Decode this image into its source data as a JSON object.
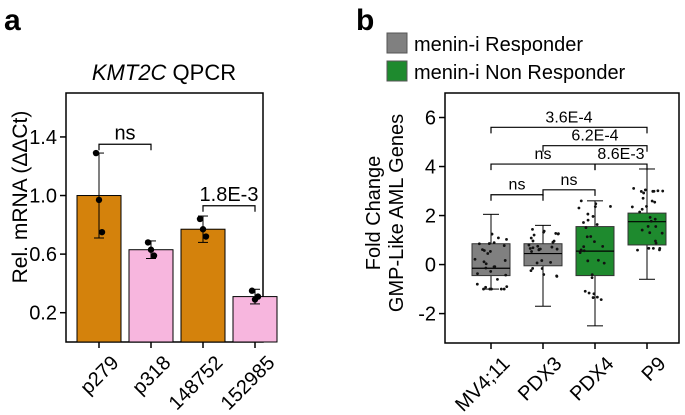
{
  "panel_labels": {
    "a": "a",
    "b": "b"
  },
  "chart_data": [
    {
      "type": "bar",
      "panel": "a",
      "title_gene": "KMT2C",
      "title_rest": " QPCR",
      "ylabel": "Rel. mRNA (ΔΔCt)",
      "ylim": [
        0.0,
        1.7
      ],
      "yticks": [
        0.2,
        0.6,
        1.0,
        1.4
      ],
      "ytick_labels": [
        "0.2",
        "0.6",
        "1.0",
        "1.4"
      ],
      "categories": [
        "p279",
        "p318",
        "148752",
        "152985"
      ],
      "values": [
        1.0,
        0.63,
        0.77,
        0.31
      ],
      "errors": [
        0.29,
        0.06,
        0.09,
        0.05
      ],
      "bar_colors": [
        "#d4820c",
        "#f7b6de",
        "#d4820c",
        "#f7b6de"
      ],
      "points": [
        [
          1.29,
          0.97,
          0.75
        ],
        [
          0.68,
          0.63,
          0.59
        ],
        [
          0.84,
          0.77,
          0.72
        ],
        [
          0.35,
          0.29,
          0.31
        ]
      ],
      "comparisons": [
        {
          "from": 0,
          "to": 1,
          "label": "ns",
          "y": 1.35
        },
        {
          "from": 2,
          "to": 3,
          "label": "1.8E-3",
          "y": 0.93
        }
      ]
    },
    {
      "type": "box",
      "panel": "b",
      "legend": [
        {
          "label": "menin-i Responder",
          "color": "#808080"
        },
        {
          "label": "menin-i Non Responder",
          "color": "#1e8a2e"
        }
      ],
      "ylabel_line1": "Fold Change",
      "ylabel_line2": "GMP-Like AML Genes",
      "ylim": [
        -3.2,
        7.0
      ],
      "yticks": [
        -2,
        0,
        2,
        4,
        6
      ],
      "ytick_labels": [
        "-2",
        "0",
        "2",
        "4",
        "6"
      ],
      "categories": [
        "MV4;11",
        "PDX3",
        "PDX4",
        "P9"
      ],
      "box_colors": [
        "#808080",
        "#808080",
        "#1e8a2e",
        "#1e8a2e"
      ],
      "boxes": [
        {
          "min": -1.0,
          "q1": -0.45,
          "median": -0.15,
          "q3": 0.85,
          "max": 2.05
        },
        {
          "min": -1.7,
          "q1": -0.05,
          "median": 0.45,
          "q3": 0.85,
          "max": 1.6
        },
        {
          "min": -2.5,
          "q1": -0.45,
          "median": 0.55,
          "q3": 1.55,
          "max": 2.6
        },
        {
          "min": -0.6,
          "q1": 0.8,
          "median": 1.75,
          "q3": 2.1,
          "max": 3.9
        }
      ],
      "comparisons": [
        {
          "from": 0,
          "to": 3,
          "label": "3.6E-4",
          "y": 5.6
        },
        {
          "from": 1,
          "to": 3,
          "label": "6.2E-4",
          "y": 4.85
        },
        {
          "from": 0,
          "to": 2,
          "label": "ns",
          "y": 4.1
        },
        {
          "from": 2,
          "to": 3,
          "label": "8.6E-3",
          "y": 4.1
        },
        {
          "from": 0,
          "to": 1,
          "label": "ns",
          "y": 2.85
        },
        {
          "from": 1,
          "to": 2,
          "label": "ns",
          "y": 3.05
        }
      ]
    }
  ]
}
